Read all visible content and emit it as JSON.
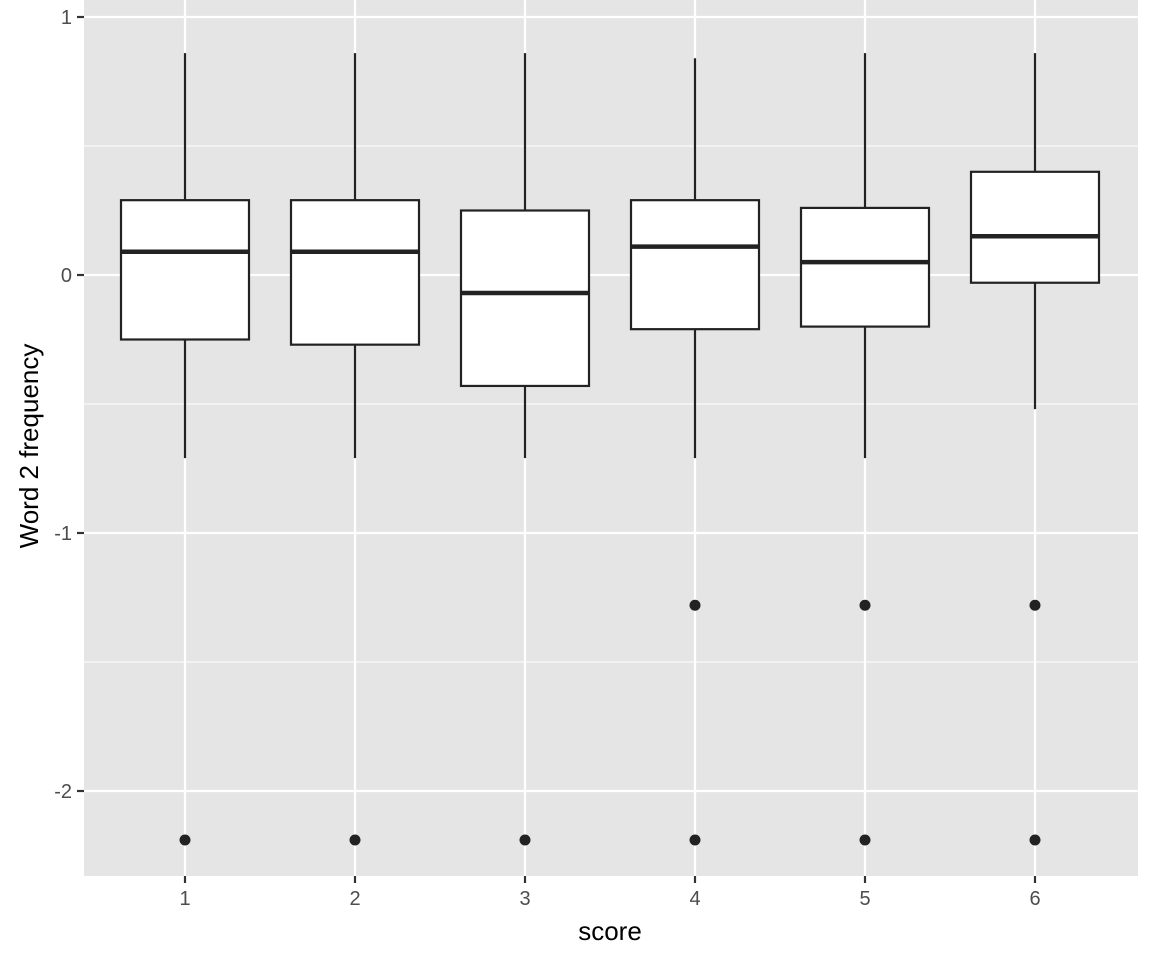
{
  "chart_data": {
    "type": "boxplot",
    "title": "",
    "xlabel": "score",
    "ylabel": "Word 2 frequency",
    "categories": [
      "1",
      "2",
      "3",
      "4",
      "5",
      "6"
    ],
    "ylim": [
      -2.33,
      1.0
    ],
    "yticks": [
      -2,
      -1,
      0,
      1
    ],
    "ytick_labels": [
      "-2",
      "-1",
      "0",
      "1"
    ],
    "grid": true,
    "legend": "none",
    "boxes": [
      {
        "category": "1",
        "whisker_low": -0.71,
        "q1": -0.25,
        "median": 0.09,
        "q3": 0.29,
        "whisker_high": 0.86,
        "outliers": [
          -2.19
        ]
      },
      {
        "category": "2",
        "whisker_low": -0.71,
        "q1": -0.27,
        "median": 0.09,
        "q3": 0.29,
        "whisker_high": 0.86,
        "outliers": [
          -2.19
        ]
      },
      {
        "category": "3",
        "whisker_low": -0.71,
        "q1": -0.43,
        "median": -0.07,
        "q3": 0.25,
        "whisker_high": 0.86,
        "outliers": [
          -2.19
        ]
      },
      {
        "category": "4",
        "whisker_low": -0.71,
        "q1": -0.21,
        "median": 0.11,
        "q3": 0.29,
        "whisker_high": 0.84,
        "outliers": [
          -1.28,
          -2.19
        ]
      },
      {
        "category": "5",
        "whisker_low": -0.71,
        "q1": -0.2,
        "median": 0.05,
        "q3": 0.26,
        "whisker_high": 0.86,
        "outliers": [
          -1.28,
          -2.19
        ]
      },
      {
        "category": "6",
        "whisker_low": -0.52,
        "q1": -0.03,
        "median": 0.15,
        "q3": 0.4,
        "whisker_high": 0.86,
        "outliers": [
          -1.28,
          -2.19
        ]
      }
    ],
    "colors": {
      "panel_background": "#e5e5e5",
      "grid": "#ffffff",
      "box_fill": "#ffffff",
      "box_stroke": "#222222",
      "outlier": "#222222",
      "tick_text": "#4d4d4d",
      "axis_title": "#000000"
    }
  }
}
